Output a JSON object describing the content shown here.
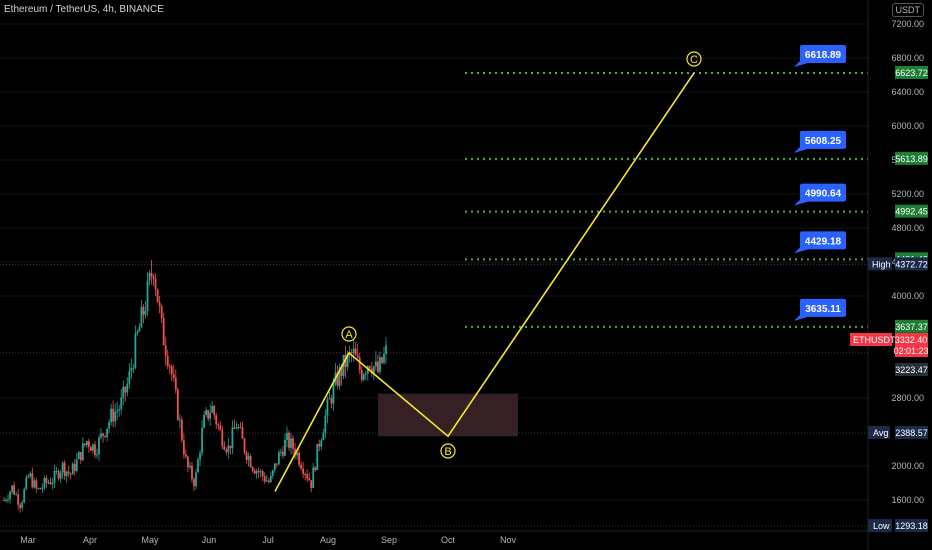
{
  "header": {
    "title": "Ethereum / TetherUS, 4h, BINANCE",
    "currency": "USDT"
  },
  "chart_data": {
    "type": "candlestick",
    "x_ticks": [
      "Mar",
      "Apr",
      "May",
      "Jun",
      "Jul",
      "Aug",
      "Sep",
      "Oct",
      "Nov"
    ],
    "y_ticks": [
      "7200.00",
      "6800.00",
      "6400.00",
      "6000.00",
      "5600.00",
      "5200.00",
      "4800.00",
      "4400.00",
      "4000.00",
      "2800.00",
      "2000.00",
      "1600.00"
    ],
    "ylim": [
      1240,
      7450
    ],
    "price_series": [
      [
        "Mar",
        1600
      ],
      [
        "Mar",
        1750
      ],
      [
        "Mar",
        1550
      ],
      [
        "Mar",
        1900
      ],
      [
        "Mar",
        1700
      ],
      [
        "Mar",
        1800
      ],
      [
        "Apr",
        1850
      ],
      [
        "Apr",
        2000
      ],
      [
        "Apr",
        1900
      ],
      [
        "Apr",
        2100
      ],
      [
        "Apr",
        2300
      ],
      [
        "Apr",
        2200
      ],
      [
        "Apr",
        2400
      ],
      [
        "Apr",
        2600
      ],
      [
        "Apr",
        2700
      ],
      [
        "Apr",
        3000
      ],
      [
        "May",
        3500
      ],
      [
        "May",
        3900
      ],
      [
        "May",
        4372.72
      ],
      [
        "May",
        3600
      ],
      [
        "May",
        3200
      ],
      [
        "May",
        2600
      ],
      [
        "May",
        2000
      ],
      [
        "May",
        1800
      ],
      [
        "Jun",
        2500
      ],
      [
        "Jun",
        2700
      ],
      [
        "Jun",
        2400
      ],
      [
        "Jun",
        2200
      ],
      [
        "Jun",
        2500
      ],
      [
        "Jun",
        2200
      ],
      [
        "Jun",
        2000
      ],
      [
        "Jul",
        1900
      ],
      [
        "Jul",
        1800
      ],
      [
        "Jul",
        2100
      ],
      [
        "Jul",
        2300
      ],
      [
        "Jul",
        2200
      ],
      [
        "Jul",
        2000
      ],
      [
        "Aug",
        1800
      ],
      [
        "Aug",
        2300
      ],
      [
        "Aug",
        2700
      ],
      [
        "Aug",
        3000
      ],
      [
        "Aug",
        3200
      ],
      [
        "Aug",
        3330
      ],
      [
        "Aug",
        3100
      ],
      [
        "Aug",
        3250
      ],
      [
        "Aug",
        3100
      ],
      [
        "Sep",
        3332.4
      ]
    ],
    "levels": [
      {
        "label": "6618.89",
        "axis": "6623.72",
        "value": 6623.72
      },
      {
        "label": "5608.25",
        "axis": "5613.89",
        "value": 5613.89
      },
      {
        "label": "4990.64",
        "axis": "4992.45",
        "value": 4992.45
      },
      {
        "label": "4429.18",
        "axis": "4431.43",
        "value": 4431.43
      },
      {
        "label": "3635.11",
        "axis": "3637.37",
        "value": 3637.37
      }
    ],
    "wave_points": [
      {
        "label": "",
        "x": "Jul",
        "value": 1700
      },
      {
        "label": "A",
        "x": "Aug",
        "value": 3330
      },
      {
        "label": "B",
        "x": "Oct",
        "value": 2350
      },
      {
        "label": "C",
        "x": "Oct-Nov+",
        "value": 6623.72
      }
    ],
    "box_zone": {
      "low": 2350,
      "high": 2850
    }
  },
  "axis_tags": {
    "high_label": "High",
    "high_value": "4372.72",
    "ethusdt_label": "ETHUSDT",
    "ethusdt_price": "3332.40",
    "ethusdt_timer": "02:01:23",
    "price_3223": "3223.47",
    "avg_label": "Avg",
    "avg_value": "2388.57",
    "low_label": "Low",
    "low_value": "1293.18"
  },
  "colors": {
    "up": "#26a69a",
    "down": "#ef5350",
    "level_line": "#4caf50",
    "level_tag": "#1e7e34",
    "callout": "#2962ff",
    "wave": "#f7e82a",
    "zone": "#3b2328",
    "current": "#f23645"
  }
}
